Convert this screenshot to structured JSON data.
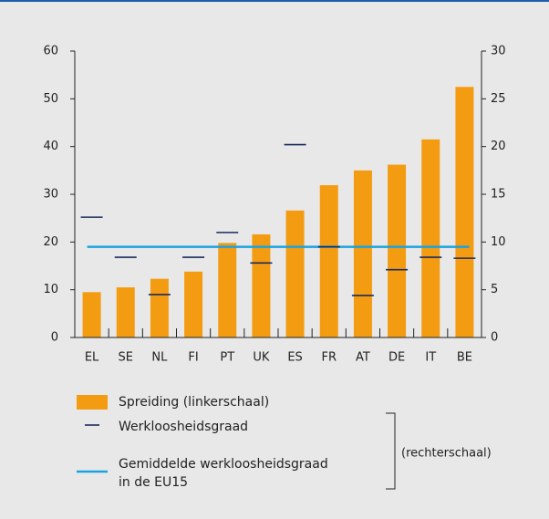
{
  "chart_data": {
    "type": "bar",
    "categories": [
      "EL",
      "SE",
      "NL",
      "FI",
      "PT",
      "UK",
      "ES",
      "FR",
      "AT",
      "DE",
      "IT",
      "BE"
    ],
    "series": [
      {
        "name": "Spreiding (linkerschaal)",
        "color": "#f39c12",
        "values": [
          9.5,
          10.5,
          12.3,
          13.8,
          19.8,
          21.6,
          26.6,
          31.9,
          35,
          36.2,
          41.5,
          52.5
        ]
      },
      {
        "name": "Werkloosheidsgraad",
        "color": "#1b2a5e",
        "axis": "y2",
        "values": [
          12.6,
          8.4,
          4.5,
          8.4,
          11,
          7.8,
          20.2,
          9.5,
          4.4,
          7.1,
          8.4,
          8.3
        ]
      }
    ],
    "reference_line": {
      "name": "Gemiddelde werkloosheidsgraad in de EU15",
      "color": "#1aa3e0",
      "axis": "y2",
      "value": 9.5
    },
    "annotation": "(rechterschaal)",
    "ylim": [
      0,
      60
    ],
    "yticks": [
      0,
      10,
      20,
      30,
      40,
      50,
      60
    ],
    "y2lim": [
      0,
      30
    ],
    "y2ticks": [
      0,
      5,
      10,
      15,
      20,
      25,
      30
    ]
  }
}
